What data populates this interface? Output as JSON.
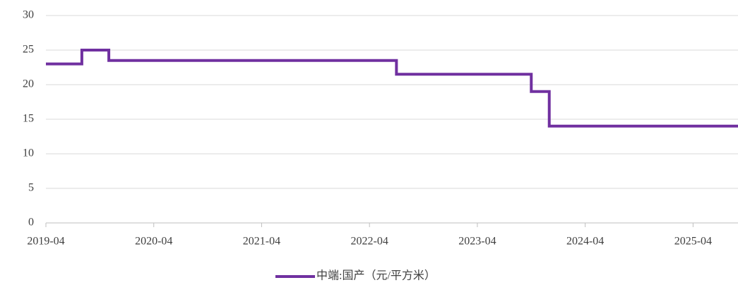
{
  "chart_data": {
    "type": "step-line",
    "x": [
      "2019-04",
      "2019-08",
      "2019-11",
      "2022-07",
      "2023-10",
      "2023-12",
      "2025-09"
    ],
    "series": [
      {
        "name": "中端:国产（元/平方米）",
        "color": "#7030a0",
        "values": [
          23,
          25,
          23.5,
          21.5,
          19,
          14,
          14
        ]
      }
    ],
    "xlim": [
      "2019-04",
      "2025-09"
    ],
    "xticks": [
      "2019-04",
      "2020-04",
      "2021-04",
      "2022-04",
      "2023-04",
      "2024-04",
      "2025-04"
    ],
    "ylim": [
      0,
      30
    ],
    "yticks": [
      0,
      5,
      10,
      15,
      20,
      25,
      30
    ],
    "grid": true,
    "legend": "bottom"
  }
}
